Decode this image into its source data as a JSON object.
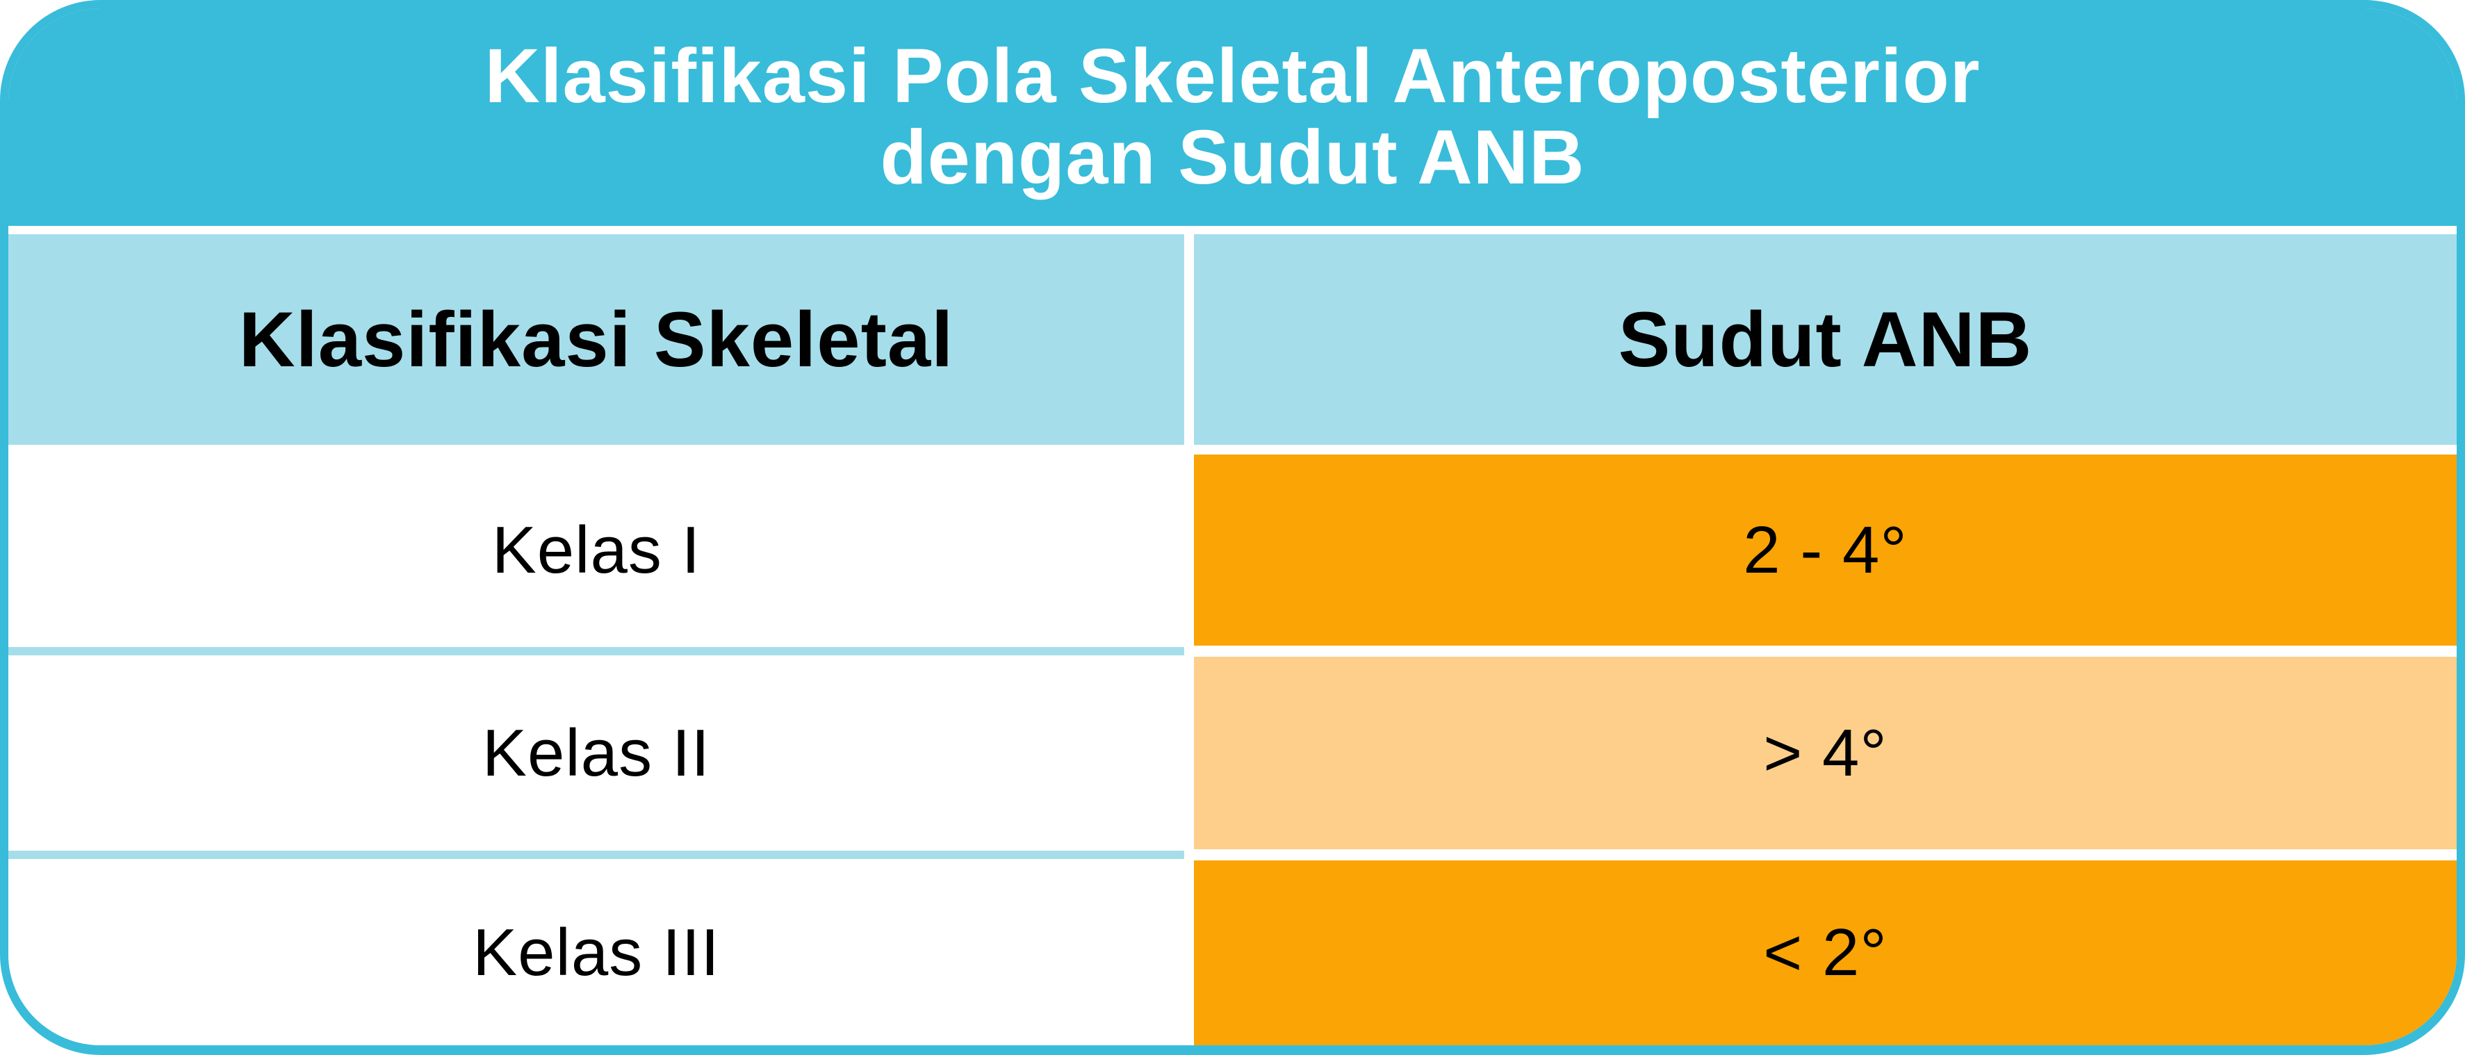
{
  "title": {
    "line1": "Klasifikasi Pola Skeletal Anteroposterior",
    "line2": "dengan Sudut ANB"
  },
  "table": {
    "columns": [
      {
        "label": "Klasifikasi Skeletal"
      },
      {
        "label": "Sudut ANB"
      }
    ],
    "rows": [
      {
        "klasifikasi": "Kelas I",
        "sudut": "2 - 4°",
        "highlight": "strong"
      },
      {
        "klasifikasi": "Kelas II",
        "sudut": "> 4°",
        "highlight": "light"
      },
      {
        "klasifikasi": "Kelas III",
        "sudut": "< 2°",
        "highlight": "strong"
      }
    ]
  },
  "colors": {
    "cyan": "#38BCDA",
    "lightblue": "#A5DEEA",
    "orange": "#FBA405",
    "lightorange": "#FDCF8A",
    "title_text": "#FFFFFF",
    "body_text": "#000000"
  }
}
